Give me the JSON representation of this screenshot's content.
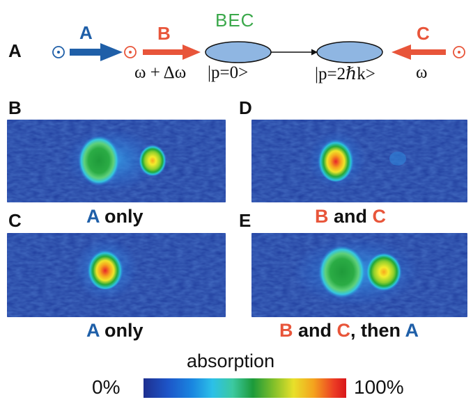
{
  "panel_a": {
    "letter": "A",
    "beams": [
      {
        "label": "A",
        "color": "#1f5fa8"
      },
      {
        "label": "B",
        "color": "#e8553a"
      },
      {
        "label": "C",
        "color": "#e8553a"
      }
    ],
    "bec_label": "BEC",
    "bec_color": "#3aa84a",
    "freq_b": "ω + Δω",
    "state_0": "|p=0>",
    "state_1": "|p=2ℏk>",
    "freq_c": "ω",
    "cloud_color": "#8fb6e2",
    "polarization_icon": "circled-dot-icon"
  },
  "images": [
    {
      "letter": "B",
      "caption": [
        {
          "text": "A",
          "tone": "blue"
        },
        {
          "text": " only",
          "tone": "dark"
        }
      ]
    },
    {
      "letter": "D",
      "caption": [
        {
          "text": "B",
          "tone": "red"
        },
        {
          "text": " and ",
          "tone": "dark"
        },
        {
          "text": "C",
          "tone": "red"
        }
      ]
    },
    {
      "letter": "C",
      "caption": [
        {
          "text": "A",
          "tone": "blue"
        },
        {
          "text": " only",
          "tone": "dark"
        }
      ]
    },
    {
      "letter": "E",
      "caption": [
        {
          "text": "B",
          "tone": "red"
        },
        {
          "text": " and ",
          "tone": "dark"
        },
        {
          "text": "C",
          "tone": "red"
        },
        {
          "text": ", then ",
          "tone": "dark"
        },
        {
          "text": "A",
          "tone": "blue"
        }
      ]
    }
  ],
  "colorbar": {
    "title": "absorption",
    "min_label": "0%",
    "max_label": "100%",
    "colormap": [
      "#1e2f8f",
      "#1d55c8",
      "#1a86e0",
      "#2cc0e8",
      "#3cc9a0",
      "#1c9a3a",
      "#7fbf2a",
      "#e8e02a",
      "#f4a21e",
      "#ec3c24",
      "#d8161a"
    ]
  },
  "colors": {
    "blue": "#1f5fa8",
    "red": "#e8553a",
    "dark": "#111111",
    "panel_bg": "#1f3c9c"
  }
}
